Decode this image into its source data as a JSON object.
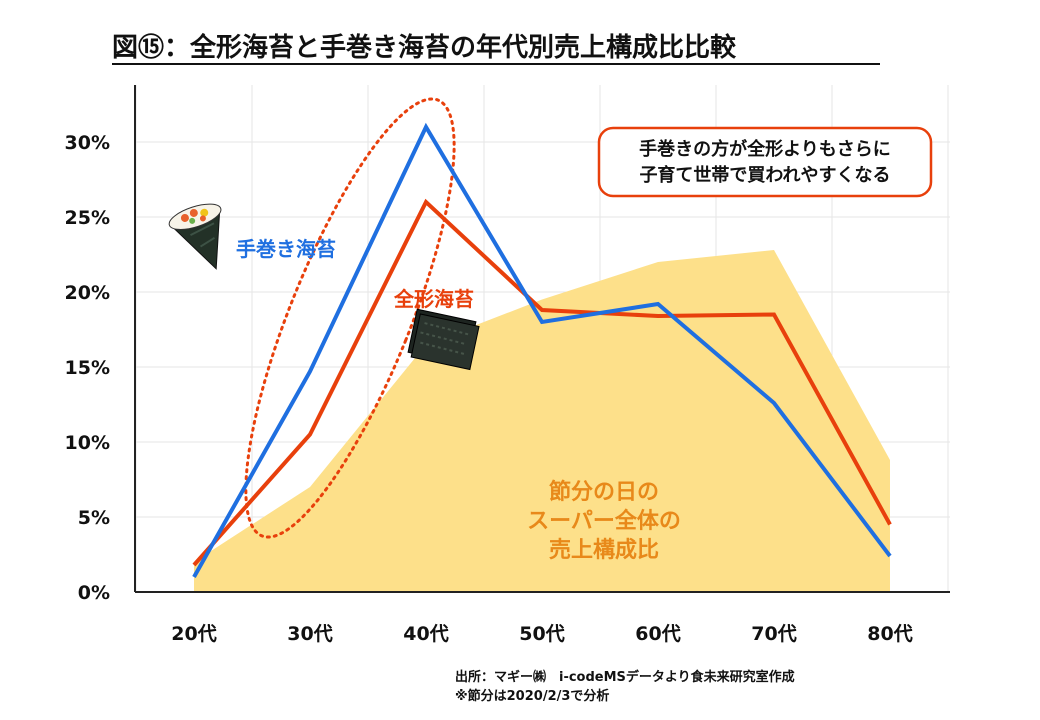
{
  "chart_data": {
    "type": "line",
    "title": "図⑮：全形海苔と手巻き海苔の年代別売上構成比比較",
    "categories": [
      "20代",
      "30代",
      "40代",
      "50代",
      "60代",
      "70代",
      "80代"
    ],
    "ylim": [
      0,
      30
    ],
    "yticks": [
      "0%",
      "5%",
      "10%",
      "15%",
      "20%",
      "25%",
      "30%"
    ],
    "grid": true,
    "series": [
      {
        "name": "手巻き海苔",
        "color": "#1f6fe0",
        "values": [
          1.0,
          14.7,
          31.0,
          18.0,
          19.2,
          12.6,
          2.4
        ]
      },
      {
        "name": "全形海苔",
        "color": "#e8400c",
        "values": [
          1.8,
          10.5,
          26.0,
          18.8,
          18.4,
          18.5,
          4.5
        ]
      }
    ],
    "area": {
      "label_lines": [
        "節分の日の",
        "スーパー全体の",
        "売上構成比"
      ],
      "color": "#fde08a",
      "values": [
        2.0,
        7.0,
        16.5,
        19.5,
        22.0,
        22.8,
        8.8
      ]
    },
    "callout_lines": [
      "手巻きの方が全形よりもさらに",
      "子育て世帯で買われやすくなる"
    ],
    "callout_color": "#e8400c"
  },
  "source_lines": [
    "出所：マギー㈱　i-codeMSデータより食未来研究室作成",
    "※節分は2020/2/3で分析"
  ],
  "icons": {
    "temaki": "hand-roll-sushi-icon",
    "nori": "nori-sheet-icon"
  }
}
